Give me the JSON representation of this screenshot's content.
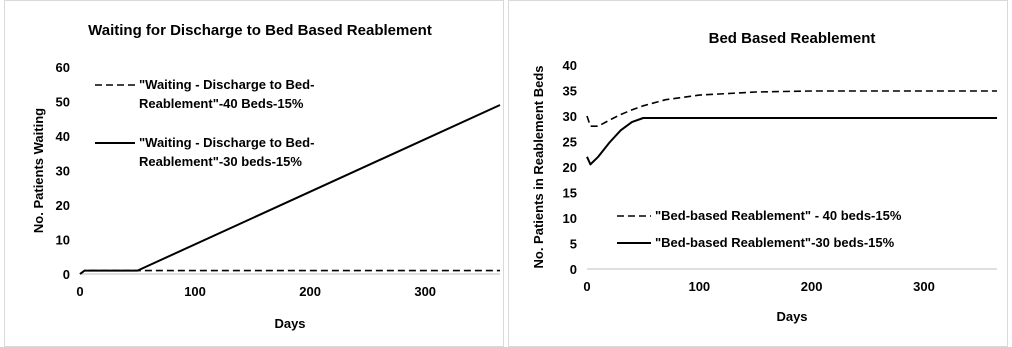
{
  "charts": [
    {
      "type": "line",
      "title": "Waiting for Discharge to Bed Based Reablement",
      "xlabel": "Days",
      "ylabel": "No. Patients Waiting",
      "xlim": [
        0,
        365
      ],
      "ylim": [
        0,
        60
      ],
      "xticks": [
        "0",
        "100",
        "200",
        "300"
      ],
      "yticks": [
        "0",
        "10",
        "20",
        "30",
        "40",
        "50",
        "60"
      ],
      "legend_position": "top-left",
      "series": [
        {
          "name": "\"Waiting - Discharge to Bed-Reablement\"-40 Beds-15%",
          "legend_lines": [
            "\"Waiting - Discharge to Bed-",
            "Reablement\"-40 Beds-15%"
          ],
          "style": "dashed",
          "x": [
            0,
            4,
            365
          ],
          "y": [
            0,
            1,
            1
          ]
        },
        {
          "name": "\"Waiting - Discharge to Bed-Reablement\"-30 beds-15%",
          "legend_lines": [
            "\"Waiting - Discharge to Bed-",
            "Reablement\"-30 beds-15%"
          ],
          "style": "solid",
          "x": [
            0,
            4,
            50,
            365
          ],
          "y": [
            0,
            1,
            1,
            49
          ]
        }
      ]
    },
    {
      "type": "line",
      "title": "Bed Based Reablement",
      "xlabel": "Days",
      "ylabel": "No. Patients in Reablement Beds",
      "xlim": [
        0,
        365
      ],
      "ylim": [
        0,
        40
      ],
      "xticks": [
        "0",
        "100",
        "200",
        "300"
      ],
      "yticks": [
        "0",
        "5",
        "10",
        "15",
        "20",
        "25",
        "30",
        "35",
        "40"
      ],
      "legend_position": "bottom-left",
      "series": [
        {
          "name": "\"Bed-based Reablement\" - 40 beds-15%",
          "legend_lines": [
            "\"Bed-based Reablement\" - 40 beds-15%"
          ],
          "style": "dashed",
          "x": [
            0,
            3,
            10,
            20,
            30,
            40,
            50,
            70,
            100,
            150,
            200,
            250,
            300,
            365
          ],
          "y": [
            30,
            28,
            28,
            29.2,
            30.3,
            31.2,
            32,
            33.2,
            34.1,
            34.7,
            34.9,
            34.9,
            34.9,
            34.9
          ]
        },
        {
          "name": "\"Bed-based Reablement\"-30 beds-15%",
          "legend_lines": [
            "\"Bed-based Reablement\"-30 beds-15%"
          ],
          "style": "solid",
          "x": [
            0,
            3,
            10,
            20,
            30,
            40,
            50,
            365
          ],
          "y": [
            22,
            20.5,
            22,
            24.8,
            27.2,
            28.8,
            29.6,
            29.6
          ]
        }
      ]
    }
  ]
}
